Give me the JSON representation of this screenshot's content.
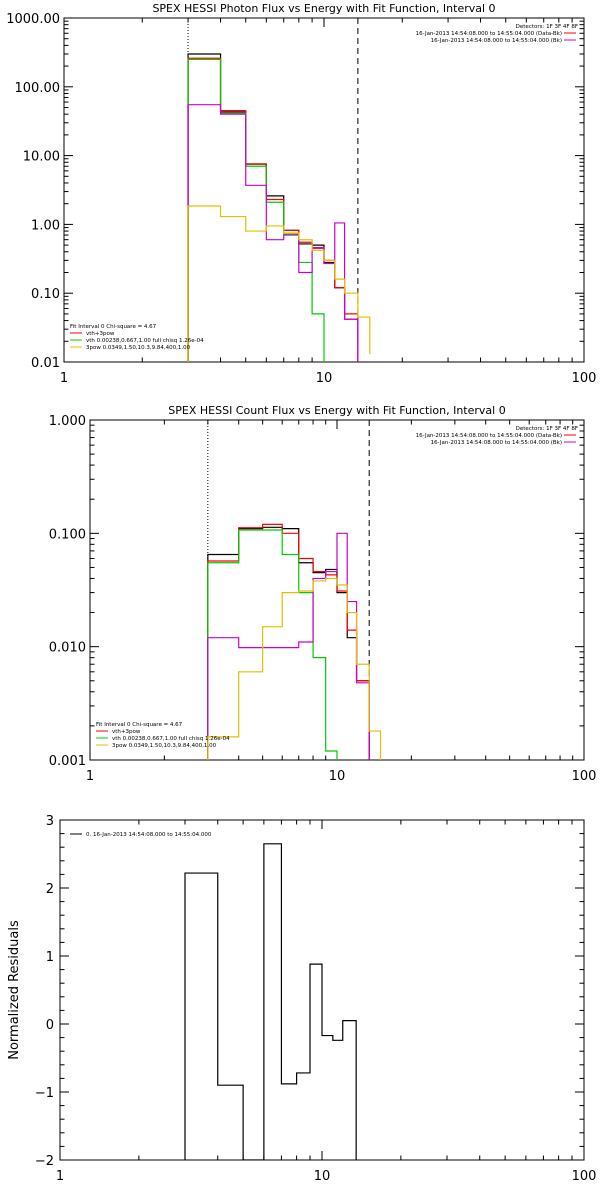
{
  "chart_data": [
    {
      "type": "line",
      "title": "SPEX HESSI Photon Flux vs Energy with Fit Function, Interval 0",
      "xlabel": "",
      "ylabel": "",
      "xscale": "log",
      "yscale": "log",
      "xlim": [
        1,
        100
      ],
      "ylim": [
        0.01,
        1000
      ],
      "x_ticks": [
        "1",
        "10",
        "100"
      ],
      "y_ticks": [
        "0.01",
        "0.10",
        "1.00",
        "10.00",
        "100.00",
        "1000.00"
      ],
      "detectors_label": "Detectors: 1F 3F 4F 8F",
      "legend_right": [
        {
          "text": "16-Jan-2013 14:54:08.000 to 14:55:04.000 (Data-Bk)",
          "color": "#ff0000"
        },
        {
          "text": "16-Jan-2013 14:54:08.000 to 14:55:04.000 (Bk)",
          "color": "#cc00cc"
        }
      ],
      "legend_left_header": "Fit Interval 0   Chi-square = 4.67",
      "legend_left": [
        {
          "text": "vth+3pow",
          "color": "#ff0000"
        },
        {
          "text": "vth 0.00238,0.667,1.00  full chisq 1.26e-04",
          "color": "#00cc00"
        },
        {
          "text": "3pow 0.0349,1.50,10.3,9.84,400,1.00",
          "color": "#e0c000"
        }
      ],
      "vlines": [
        {
          "x": 3,
          "style": "dotted"
        },
        {
          "x": 13.5,
          "style": "dashed"
        }
      ],
      "series": [
        {
          "color": "#000000",
          "edges": [
            3,
            4,
            5,
            6,
            7,
            8,
            9,
            10,
            11,
            12,
            13.5
          ],
          "values": [
            300,
            43,
            7.5,
            2.6,
            0.82,
            0.52,
            0.5,
            0.28,
            0.12,
            0.042
          ]
        },
        {
          "color": "#ff0000",
          "edges": [
            3,
            4,
            5,
            6,
            7,
            8,
            9,
            10,
            11,
            12,
            13.5
          ],
          "values": [
            260,
            45,
            7.6,
            2.3,
            0.82,
            0.55,
            0.45,
            0.3,
            0.12,
            0.05
          ]
        },
        {
          "color": "#00cc00",
          "edges": [
            3,
            4,
            5,
            6,
            7,
            8,
            9,
            10
          ],
          "values": [
            250,
            41,
            7.0,
            2.1,
            0.72,
            0.28,
            0.05,
            0.0095
          ]
        },
        {
          "color": "#cc00cc",
          "edges": [
            3,
            4,
            5,
            6,
            7,
            8,
            9,
            10,
            11,
            12,
            13.5
          ],
          "values": [
            55,
            40,
            3.7,
            0.6,
            0.7,
            0.2,
            0.46,
            0.27,
            1.05,
            0.042
          ]
        },
        {
          "color": "#e0c000",
          "edges": [
            3,
            4,
            5,
            6,
            7,
            8,
            9,
            10,
            11,
            12,
            13.5,
            15
          ],
          "values": [
            1.85,
            1.3,
            0.8,
            0.95,
            0.75,
            0.6,
            0.42,
            0.3,
            0.16,
            0.1,
            0.045,
            0.013
          ]
        }
      ]
    },
    {
      "type": "line",
      "title": "SPEX HESSI Count Flux vs Energy with Fit Function, Interval 0",
      "xlabel": "",
      "ylabel": "",
      "xscale": "log",
      "yscale": "log",
      "xlim": [
        1,
        100
      ],
      "ylim": [
        0.001,
        1
      ],
      "x_ticks": [
        "1",
        "10",
        "100"
      ],
      "y_ticks": [
        "0.001",
        "0.010",
        "0.100",
        "1.000"
      ],
      "detectors_label": "Detectors: 1F 3F 4F 8F",
      "legend_right": [
        {
          "text": "16-Jan-2013 14:54:08.000 to 14:55:04.000 (Data-Bk)",
          "color": "#ff0000"
        },
        {
          "text": "16-Jan-2013 14:54:08.000 to 14:55:04.000 (Bk)",
          "color": "#cc00cc"
        }
      ],
      "legend_left_header": "Fit Interval 0   Chi-square = 4.67",
      "legend_left": [
        {
          "text": "vth+3pow",
          "color": "#ff0000"
        },
        {
          "text": "vth 0.00238,0.667,1.00  full chisq 1.26e-04",
          "color": "#00cc00"
        },
        {
          "text": "3pow 0.0349,1.50,10.3,9.84,400,1.00",
          "color": "#e0c000"
        }
      ],
      "vlines": [
        {
          "x": 3,
          "style": "dotted"
        },
        {
          "x": 13.5,
          "style": "dashed"
        }
      ],
      "series": [
        {
          "color": "#000000",
          "edges": [
            3,
            4,
            5,
            6,
            7,
            8,
            9,
            10,
            11,
            12,
            13.5
          ],
          "values": [
            0.065,
            0.11,
            0.113,
            0.11,
            0.055,
            0.045,
            0.048,
            0.03,
            0.012,
            0.005
          ]
        },
        {
          "color": "#ff0000",
          "edges": [
            3,
            4,
            5,
            6,
            7,
            8,
            9,
            10,
            11,
            12,
            13.5
          ],
          "values": [
            0.057,
            0.112,
            0.12,
            0.1,
            0.06,
            0.046,
            0.043,
            0.031,
            0.014,
            0.005
          ]
        },
        {
          "color": "#00cc00",
          "edges": [
            3,
            4,
            5,
            6,
            7,
            8,
            9,
            10
          ],
          "values": [
            0.055,
            0.107,
            0.107,
            0.065,
            0.03,
            0.008,
            0.0012,
            0.0009
          ]
        },
        {
          "color": "#cc00cc",
          "edges": [
            3,
            4,
            5,
            6,
            7,
            8,
            9,
            10,
            11,
            12,
            13.5
          ],
          "values": [
            0.012,
            0.0098,
            0.0098,
            0.0098,
            0.011,
            0.04,
            0.046,
            0.1,
            0.025,
            0.0048
          ]
        },
        {
          "color": "#e0c000",
          "edges": [
            3,
            4,
            5,
            6,
            7,
            8,
            9,
            10,
            11,
            12,
            13.5,
            15
          ],
          "values": [
            0.0016,
            0.006,
            0.015,
            0.03,
            0.031,
            0.038,
            0.04,
            0.035,
            0.02,
            0.007,
            0.0018,
            0.0008
          ]
        }
      ]
    },
    {
      "type": "line",
      "title": "",
      "xlabel": "",
      "ylabel": "Normalized Residuals",
      "xscale": "log",
      "yscale": "linear",
      "xlim": [
        1,
        100
      ],
      "ylim": [
        -2,
        3
      ],
      "x_ticks": [
        "1",
        "10",
        "100"
      ],
      "y_ticks": [
        "−2",
        "−1",
        "0",
        "1",
        "2",
        "3"
      ],
      "legend_left": [
        {
          "text": "0. 16-Jan-2013 14:54:08.000 to 14:55:04.000",
          "color": "#000000"
        }
      ],
      "series": [
        {
          "color": "#000000",
          "edges": [
            3,
            4,
            5,
            6,
            7,
            8,
            9,
            10,
            11,
            12,
            13.5
          ],
          "values": [
            2.22,
            -0.9,
            -2.05,
            2.65,
            -0.88,
            -0.72,
            0.88,
            -0.17,
            -0.24,
            0.05
          ]
        }
      ]
    }
  ]
}
